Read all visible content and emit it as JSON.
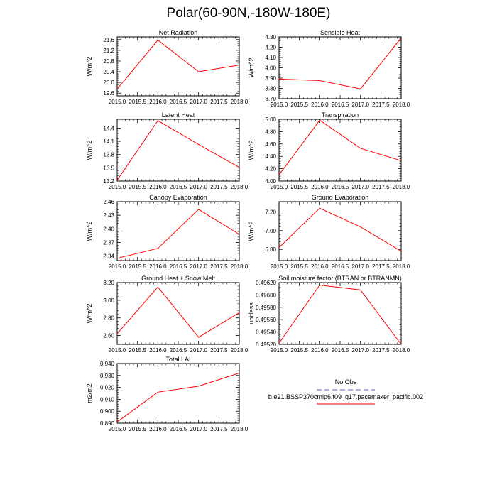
{
  "figure": {
    "title": "Polar(60-90N,-180W-180E)",
    "legend": {
      "entries": [
        {
          "label": "No Obs",
          "color": "#9999cc",
          "dash": "dashed"
        },
        {
          "label": "b.e21.BSSP370cmip6.f09_g17.pacemaker_pacific.002",
          "color": "#ff0000",
          "dash": "solid"
        }
      ]
    }
  },
  "chart_data": [
    {
      "type": "line",
      "title": "Net Radiation",
      "ylabel": "W/m^2",
      "x": [
        2015.0,
        2016.0,
        2017.0,
        2018.0
      ],
      "values": [
        19.75,
        21.58,
        20.4,
        20.65
      ],
      "xlim": [
        2015.0,
        2018.0
      ],
      "ylim": [
        19.5,
        21.7
      ],
      "xticks": [
        "2015.0",
        "2015.5",
        "2016.0",
        "2016.5",
        "2017.0",
        "2017.5",
        "2018.0"
      ],
      "yticks": [
        {
          "v": 19.6,
          "t": "19.6"
        },
        {
          "v": 20.0,
          "t": "20.0"
        },
        {
          "v": 20.4,
          "t": "20.4"
        },
        {
          "v": 20.8,
          "t": "20.8"
        },
        {
          "v": 21.2,
          "t": "21.2"
        },
        {
          "v": 21.6,
          "t": "21.6"
        }
      ]
    },
    {
      "type": "line",
      "title": "Sensible Heat",
      "ylabel": "W/m^2",
      "x": [
        2015.0,
        2016.0,
        2017.0,
        2018.0
      ],
      "values": [
        3.89,
        3.876,
        3.795,
        4.29
      ],
      "xlim": [
        2015.0,
        2018.0
      ],
      "ylim": [
        3.7,
        4.3
      ],
      "xticks": [
        "2015.0",
        "2015.5",
        "2016.0",
        "2016.5",
        "2017.0",
        "2017.5",
        "2018.0"
      ],
      "yticks": [
        {
          "v": 3.7,
          "t": "3.70"
        },
        {
          "v": 3.8,
          "t": "3.80"
        },
        {
          "v": 3.9,
          "t": "3.90"
        },
        {
          "v": 4.0,
          "t": "4.00"
        },
        {
          "v": 4.1,
          "t": "4.10"
        },
        {
          "v": 4.2,
          "t": "4.20"
        },
        {
          "v": 4.3,
          "t": "4.30"
        }
      ]
    },
    {
      "type": "line",
      "title": "Latent Heat",
      "ylabel": "W/m^2",
      "x": [
        2015.0,
        2016.0,
        2017.0,
        2018.0
      ],
      "values": [
        13.22,
        14.57,
        14.03,
        13.51
      ],
      "xlim": [
        2015.0,
        2018.0
      ],
      "ylim": [
        13.2,
        14.6
      ],
      "xticks": [
        "2015.0",
        "2015.5",
        "2016.0",
        "2016.5",
        "2017.0",
        "2017.5",
        "2018.0"
      ],
      "yticks": [
        {
          "v": 13.2,
          "t": "13.2"
        },
        {
          "v": 13.5,
          "t": "13.5"
        },
        {
          "v": 13.8,
          "t": "13.8"
        },
        {
          "v": 14.1,
          "t": "14.1"
        },
        {
          "v": 14.4,
          "t": "14.4"
        }
      ]
    },
    {
      "type": "line",
      "title": "Transpiration",
      "ylabel": "W/m^2",
      "x": [
        2015.0,
        2016.0,
        2017.0,
        2018.0
      ],
      "values": [
        4.1,
        4.985,
        4.53,
        4.33
      ],
      "xlim": [
        2015.0,
        2018.0
      ],
      "ylim": [
        4.0,
        5.0
      ],
      "xticks": [
        "2015.0",
        "2015.5",
        "2016.0",
        "2016.5",
        "2017.0",
        "2017.5",
        "2018.0"
      ],
      "yticks": [
        {
          "v": 4.0,
          "t": "4.00"
        },
        {
          "v": 4.2,
          "t": "4.20"
        },
        {
          "v": 4.4,
          "t": "4.40"
        },
        {
          "v": 4.6,
          "t": "4.60"
        },
        {
          "v": 4.8,
          "t": "4.80"
        },
        {
          "v": 5.0,
          "t": "5.00"
        }
      ]
    },
    {
      "type": "line",
      "title": "Canopy Evaporation",
      "ylabel": "W/m^2",
      "x": [
        2015.0,
        2016.0,
        2017.0,
        2018.0
      ],
      "values": [
        2.335,
        2.357,
        2.443,
        2.388
      ],
      "xlim": [
        2015.0,
        2018.0
      ],
      "ylim": [
        2.33,
        2.46
      ],
      "xticks": [
        "2015.0",
        "2015.5",
        "2016.0",
        "2016.5",
        "2017.0",
        "2017.5",
        "2018.0"
      ],
      "yticks": [
        {
          "v": 2.34,
          "t": "2.34"
        },
        {
          "v": 2.37,
          "t": "2.37"
        },
        {
          "v": 2.4,
          "t": "2.40"
        },
        {
          "v": 2.43,
          "t": "2.43"
        },
        {
          "v": 2.46,
          "t": "2.46"
        }
      ]
    },
    {
      "type": "line",
      "title": "Ground Evaporation",
      "ylabel": "W/m^2",
      "x": [
        2015.0,
        2016.0,
        2017.0,
        2018.0
      ],
      "values": [
        6.82,
        7.24,
        7.04,
        6.78
      ],
      "xlim": [
        2015.0,
        2018.0
      ],
      "ylim": [
        6.68,
        7.31
      ],
      "xticks": [
        "2015.0",
        "2015.5",
        "2016.0",
        "2016.5",
        "2017.0",
        "2017.5",
        "2018.0"
      ],
      "yticks": [
        {
          "v": 6.8,
          "t": "6.80"
        },
        {
          "v": 7.0,
          "t": "7.00"
        },
        {
          "v": 7.2,
          "t": "7.20"
        }
      ]
    },
    {
      "type": "line",
      "title": "Ground Heat + Snow Melt",
      "ylabel": "W/m^2",
      "x": [
        2015.0,
        2016.0,
        2017.0,
        2018.0
      ],
      "values": [
        2.62,
        3.15,
        2.58,
        2.86
      ],
      "xlim": [
        2015.0,
        2018.0
      ],
      "ylim": [
        2.5,
        3.2
      ],
      "xticks": [
        "2015.0",
        "2015.5",
        "2016.0",
        "2016.5",
        "2017.0",
        "2017.5",
        "2018.0"
      ],
      "yticks": [
        {
          "v": 2.6,
          "t": "2.60"
        },
        {
          "v": 2.8,
          "t": "2.80"
        },
        {
          "v": 3.0,
          "t": "3.00"
        },
        {
          "v": 3.2,
          "t": "3.20"
        }
      ]
    },
    {
      "type": "line",
      "title": "Soil moisture factor (BTRAN or BTRANMN)",
      "ylabel": "unitless",
      "x": [
        2015.0,
        2016.0,
        2017.0,
        2018.0
      ],
      "values": [
        0.49522,
        0.49616,
        0.49608,
        0.4952
      ],
      "xlim": [
        2015.0,
        2018.0
      ],
      "ylim": [
        0.4952,
        0.4962
      ],
      "xticks": [
        "2015.0",
        "2015.5",
        "2016.0",
        "2016.5",
        "2017.0",
        "2017.5",
        "2018.0"
      ],
      "yticks": [
        {
          "v": 0.4952,
          "t": "0.49520"
        },
        {
          "v": 0.4954,
          "t": "0.49540"
        },
        {
          "v": 0.4956,
          "t": "0.49560"
        },
        {
          "v": 0.4958,
          "t": "0.49580"
        },
        {
          "v": 0.496,
          "t": "0.49600"
        },
        {
          "v": 0.4962,
          "t": "0.49620"
        }
      ]
    },
    {
      "type": "line",
      "title": "Total LAI",
      "ylabel": "m2/m2",
      "x": [
        2015.0,
        2016.0,
        2017.0,
        2018.0
      ],
      "values": [
        0.891,
        0.916,
        0.921,
        0.932
      ],
      "xlim": [
        2015.0,
        2018.0
      ],
      "ylim": [
        0.89,
        0.94
      ],
      "xticks": [
        "2015.0",
        "2015.5",
        "2016.0",
        "2016.5",
        "2017.0",
        "2017.5",
        "2018.0"
      ],
      "yticks": [
        {
          "v": 0.89,
          "t": "0.890"
        },
        {
          "v": 0.9,
          "t": "0.900"
        },
        {
          "v": 0.91,
          "t": "0.910"
        },
        {
          "v": 0.92,
          "t": "0.920"
        },
        {
          "v": 0.93,
          "t": "0.930"
        },
        {
          "v": 0.94,
          "t": "0.940"
        }
      ]
    }
  ]
}
